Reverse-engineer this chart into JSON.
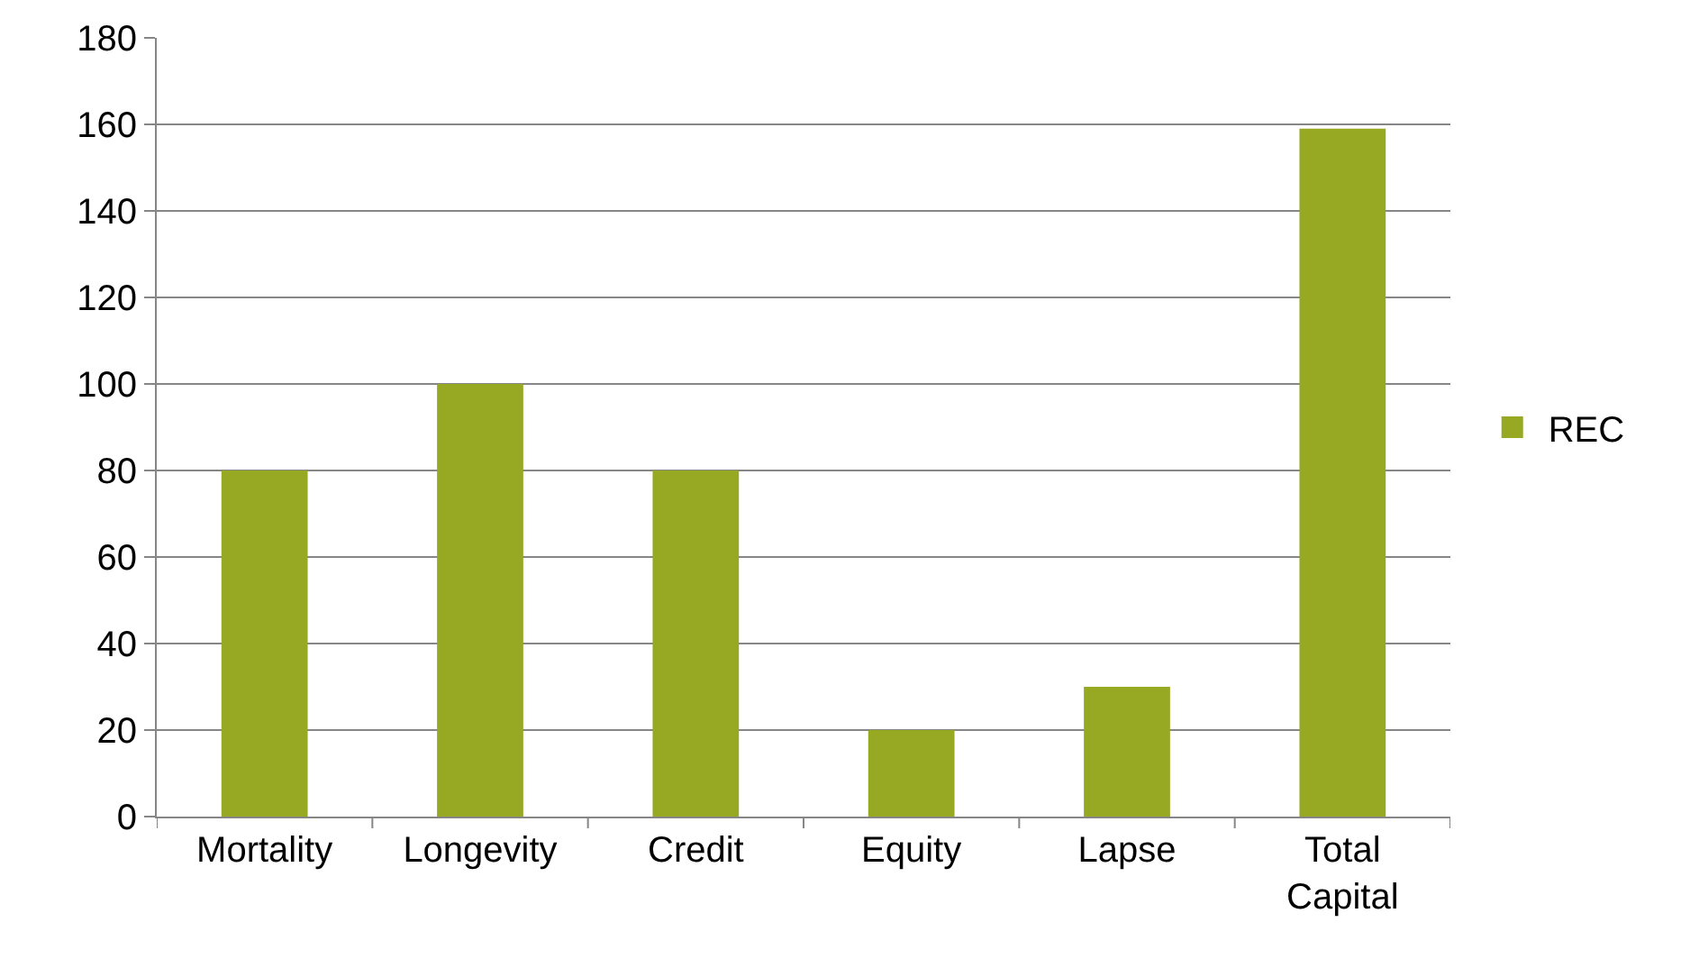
{
  "chart_data": {
    "type": "bar",
    "categories": [
      "Mortality",
      "Longevity",
      "Credit",
      "Equity",
      "Lapse",
      "Total Capital"
    ],
    "series": [
      {
        "name": "REC",
        "color": "#97a823",
        "values": [
          80,
          100,
          80,
          20,
          30,
          159
        ]
      }
    ],
    "ylim": [
      0,
      180
    ],
    "yticks": [
      0,
      20,
      40,
      60,
      80,
      100,
      120,
      140,
      160,
      180
    ],
    "grid": "y",
    "legend": "right"
  }
}
